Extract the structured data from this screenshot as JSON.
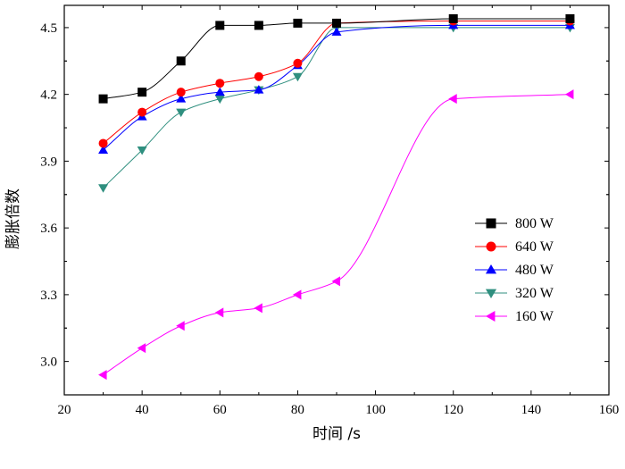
{
  "chart_data": {
    "type": "line",
    "title": "",
    "xlabel": "时间 /s",
    "ylabel": "膨胀倍数",
    "xlim": [
      20,
      160
    ],
    "ylim": [
      2.85,
      4.6
    ],
    "xticks": [
      20,
      40,
      60,
      80,
      100,
      120,
      140,
      160
    ],
    "yticks": [
      3.0,
      3.3,
      3.6,
      3.9,
      4.2,
      4.5
    ],
    "xtick_labels": [
      "20",
      "40",
      "60",
      "80",
      "100",
      "120",
      "140",
      "160"
    ],
    "ytick_labels": [
      "3.0",
      "3.3",
      "3.6",
      "3.9",
      "4.2",
      "4.5"
    ],
    "grid": false,
    "legend_position": "right",
    "series": [
      {
        "name": "800 W",
        "color": "#000000",
        "marker": "square",
        "x": [
          30,
          40,
          50,
          60,
          70,
          80,
          90,
          120,
          150
        ],
        "y": [
          4.18,
          4.21,
          4.35,
          4.51,
          4.51,
          4.52,
          4.52,
          4.54,
          4.54
        ]
      },
      {
        "name": "640 W",
        "color": "#ff0000",
        "marker": "circle",
        "x": [
          30,
          40,
          50,
          60,
          70,
          80,
          90,
          120,
          150
        ],
        "y": [
          3.98,
          4.12,
          4.21,
          4.25,
          4.28,
          4.34,
          4.52,
          4.53,
          4.53
        ]
      },
      {
        "name": "480 W",
        "color": "#0000ff",
        "marker": "triangle-up",
        "x": [
          30,
          40,
          50,
          60,
          70,
          80,
          90,
          120,
          150
        ],
        "y": [
          3.95,
          4.1,
          4.18,
          4.21,
          4.22,
          4.33,
          4.48,
          4.51,
          4.51
        ]
      },
      {
        "name": "320 W",
        "color": "#2f8f7f",
        "marker": "triangle-down",
        "x": [
          30,
          40,
          50,
          60,
          70,
          80,
          90,
          120,
          150
        ],
        "y": [
          3.78,
          3.95,
          4.12,
          4.18,
          4.22,
          4.28,
          4.5,
          4.5,
          4.5
        ]
      },
      {
        "name": "160 W",
        "color": "#ff00ff",
        "marker": "triangle-left",
        "x": [
          30,
          40,
          50,
          60,
          70,
          80,
          90,
          120,
          150
        ],
        "y": [
          2.94,
          3.06,
          3.16,
          3.22,
          3.24,
          3.3,
          3.36,
          4.18,
          4.2
        ]
      }
    ]
  }
}
